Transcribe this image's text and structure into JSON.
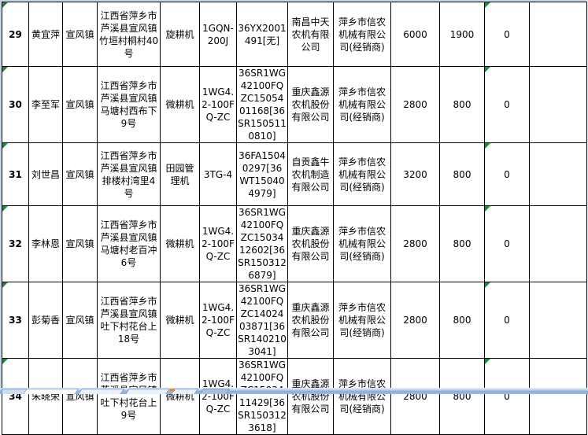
{
  "grid": {
    "error_flag_columns": [
      "row_no",
      "flag"
    ],
    "rows": [
      {
        "row_no": "29",
        "name": "黄宜萍",
        "town": "宣风镇",
        "address": "江西省萍乡市芦溪县宣风镇竹垣村桐村40号",
        "machine_type": "旋耕机",
        "model": "1GQN-200J",
        "serial": "36YX2001491[无]",
        "manufacturer": "南昌中天农机有限公司",
        "dealer": "萍乡市信农机械有限公司(经销商)",
        "price": "6000",
        "subsidy": "1900",
        "flag": "0",
        "extra": ""
      },
      {
        "row_no": "30",
        "name": "李至军",
        "town": "宣风镇",
        "address": "江西省萍乡市芦溪县宣风镇马塘村西布下9号",
        "machine_type": "微耕机",
        "model": "1WG4.2-100FQ-ZC",
        "serial": "36SR1WG42100FQZC1505401168[36SR1505110810]",
        "manufacturer": "重庆鑫源农机股份有限公司",
        "dealer": "萍乡市信农机械有限公司(经销商)",
        "price": "2800",
        "subsidy": "800",
        "flag": "0",
        "extra": ""
      },
      {
        "row_no": "31",
        "name": "刘世昌",
        "town": "宣风镇",
        "address": "江西省萍乡市芦溪县宣风镇排楼村湾里4号",
        "machine_type": "田园管理机",
        "model": "3TG-4",
        "serial": "36FA15040297[36WT150404979]",
        "manufacturer": "自贡鑫牛农机制造有限公司",
        "dealer": "萍乡市信农机械有限公司(经销商)",
        "price": "3200",
        "subsidy": "800",
        "flag": "0",
        "extra": ""
      },
      {
        "row_no": "32",
        "name": "李林恩",
        "town": "宣风镇",
        "address": "江西省萍乡市芦溪县宣风镇马塘村老百冲6号",
        "machine_type": "微耕机",
        "model": "1WG4.2-100FQ-ZC",
        "serial": "36SR1WG42100FQZC1503412602[36SR1503126879]",
        "manufacturer": "重庆鑫源农机股份有限公司",
        "dealer": "萍乡市信农机械有限公司(经销商)",
        "price": "2800",
        "subsidy": "800",
        "flag": "0",
        "extra": ""
      },
      {
        "row_no": "33",
        "name": "彭菊香",
        "town": "宣风镇",
        "address": "江西省萍乡市芦溪县宣风镇吐下村花台上18号",
        "machine_type": "微耕机",
        "model": "1WG4.2-100FQ-ZC",
        "serial": "36SR1WG42100FQZC1402403871[36SR1402103041]",
        "manufacturer": "重庆鑫源农机股份有限公司",
        "dealer": "萍乡市信农机械有限公司(经销商)",
        "price": "2800",
        "subsidy": "800",
        "flag": "0",
        "extra": ""
      },
      {
        "row_no": "34",
        "name": "朱晓荣",
        "town": "宣风镇",
        "address": "江西省萍乡市芦溪县宣风镇吐下村花台上9号",
        "machine_type": "微耕机",
        "model": "1WG4.2-100FQ-ZC",
        "serial": "36SR1WG42100FQZC1503411429[36SR1503123618]",
        "manufacturer": "重庆鑫源农机股份有限公司",
        "dealer": "萍乡市信农机械有限公司(经销商)",
        "price": "2800",
        "subsidy": "800",
        "flag": "0",
        "extra": ""
      }
    ]
  },
  "icons": {
    "error_indicator": "green-corner-triangle"
  },
  "colors": {
    "grid_line": "#000000",
    "cell_background": "#ffffff",
    "error_triangle_green": "#1d8a3e",
    "window_edge_blue": "#c7d7ea",
    "tab_bar_blue": "#8fafd6",
    "tab_accent_orange": "#e6892e"
  }
}
